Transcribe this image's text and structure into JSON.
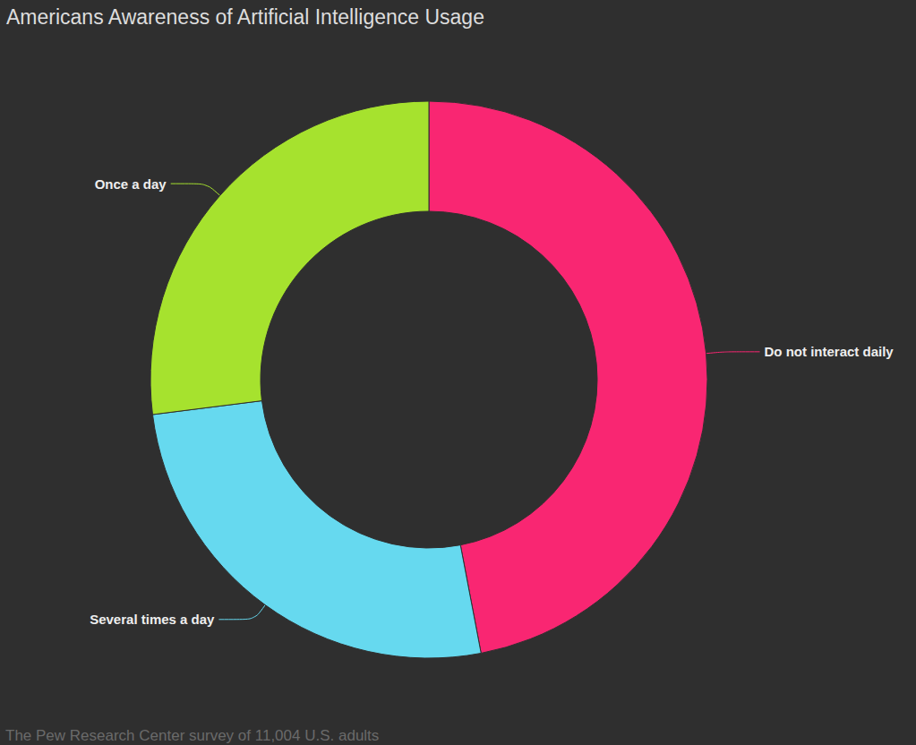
{
  "chart_data": {
    "type": "pie",
    "title": "Americans Awareness of Artificial Intelligence Usage",
    "categories": [
      "Do not interact daily",
      "Several times a day",
      "Once a day"
    ],
    "values": [
      47,
      26,
      27
    ],
    "colors": [
      "#f92672",
      "#66d9ef",
      "#a6e22e"
    ],
    "annotations": [
      "The Pew Research Center survey of 11,004 U.S. adults"
    ]
  }
}
